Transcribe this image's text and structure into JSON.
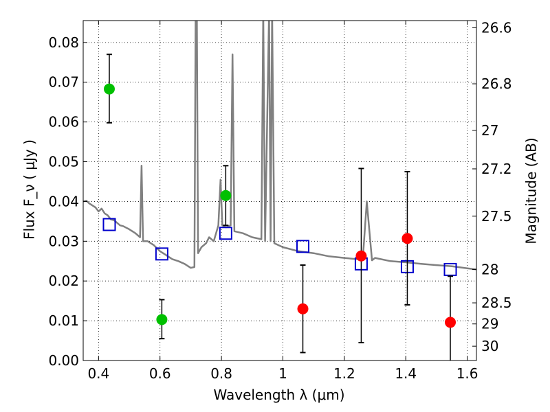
{
  "chart_data": {
    "type": "scatter",
    "xlabel": "Wavelength  λ (μm)",
    "ylabel": "Flux  F_ν  ( μJy )",
    "y2label": "Magnitude (AB)",
    "xlim": [
      0.35,
      1.63
    ],
    "ylim": [
      0.0,
      0.0855
    ],
    "grid": true,
    "x_ticks": [
      0.4,
      0.6,
      0.8,
      1.0,
      1.2,
      1.4,
      1.6
    ],
    "x_tick_labels": [
      "0.4",
      "0.6",
      "0.8",
      "1",
      "1.2",
      "1.4",
      "1.6"
    ],
    "y_ticks": [
      0.0,
      0.01,
      0.02,
      0.03,
      0.04,
      0.05,
      0.06,
      0.07,
      0.08
    ],
    "y_tick_labels": [
      "0.00",
      "0.01",
      "0.02",
      "0.03",
      "0.04",
      "0.05",
      "0.06",
      "0.07",
      "0.08"
    ],
    "mag_ticks": [
      {
        "label": "26.6",
        "flux": 0.0837
      },
      {
        "label": "26.8",
        "flux": 0.0696
      },
      {
        "label": "27",
        "flux": 0.0579
      },
      {
        "label": "27.2",
        "flux": 0.0482
      },
      {
        "label": "27.5",
        "flux": 0.0363
      },
      {
        "label": "28",
        "flux": 0.0229
      },
      {
        "label": "28.5",
        "flux": 0.0145
      },
      {
        "label": "29",
        "flux": 0.0092
      },
      {
        "label": "30",
        "flux": 0.0036
      }
    ],
    "series": [
      {
        "marker": "circle",
        "color": "#00c000",
        "points": [
          {
            "x": 0.435,
            "y": 0.0683,
            "ylo": 0.0598,
            "yhi": 0.077
          },
          {
            "x": 0.606,
            "y": 0.0103,
            "ylo": 0.0055,
            "yhi": 0.0153
          },
          {
            "x": 0.814,
            "y": 0.0415,
            "ylo": 0.034,
            "yhi": 0.049
          }
        ]
      },
      {
        "marker": "circle",
        "color": "#ff0000",
        "points": [
          {
            "x": 1.065,
            "y": 0.013,
            "ylo": 0.002,
            "yhi": 0.024
          },
          {
            "x": 1.255,
            "y": 0.0263,
            "ylo": 0.0045,
            "yhi": 0.0483
          },
          {
            "x": 1.405,
            "y": 0.0307,
            "ylo": 0.014,
            "yhi": 0.0475
          },
          {
            "x": 1.545,
            "y": 0.0096,
            "ylo": -0.002,
            "yhi": 0.0212
          }
        ]
      },
      {
        "marker": "square",
        "color": "#0000cc",
        "points": [
          {
            "x": 0.435,
            "y": 0.0342
          },
          {
            "x": 0.606,
            "y": 0.0268
          },
          {
            "x": 0.814,
            "y": 0.032
          },
          {
            "x": 1.065,
            "y": 0.0287
          },
          {
            "x": 1.255,
            "y": 0.0243
          },
          {
            "x": 1.405,
            "y": 0.0236
          },
          {
            "x": 1.545,
            "y": 0.0229
          }
        ]
      },
      {
        "marker": "line",
        "color": "#808080",
        "points": [
          [
            0.35,
            0.04
          ],
          [
            0.36,
            0.0402
          ],
          [
            0.37,
            0.0395
          ],
          [
            0.38,
            0.039
          ],
          [
            0.39,
            0.0385
          ],
          [
            0.4,
            0.0375
          ],
          [
            0.41,
            0.0382
          ],
          [
            0.42,
            0.037
          ],
          [
            0.43,
            0.0365
          ],
          [
            0.44,
            0.0355
          ],
          [
            0.45,
            0.0353
          ],
          [
            0.47,
            0.034
          ],
          [
            0.48,
            0.0338
          ],
          [
            0.5,
            0.033
          ],
          [
            0.52,
            0.032
          ],
          [
            0.535,
            0.031
          ],
          [
            0.54,
            0.049
          ],
          [
            0.545,
            0.03
          ],
          [
            0.56,
            0.03
          ],
          [
            0.58,
            0.029
          ],
          [
            0.6,
            0.0275
          ],
          [
            0.62,
            0.0265
          ],
          [
            0.64,
            0.0255
          ],
          [
            0.66,
            0.025
          ],
          [
            0.68,
            0.0243
          ],
          [
            0.7,
            0.0233
          ],
          [
            0.712,
            0.0235
          ],
          [
            0.716,
            0.088
          ],
          [
            0.72,
            0.088
          ],
          [
            0.724,
            0.027
          ],
          [
            0.735,
            0.0285
          ],
          [
            0.75,
            0.0295
          ],
          [
            0.76,
            0.031
          ],
          [
            0.775,
            0.03
          ],
          [
            0.79,
            0.034
          ],
          [
            0.797,
            0.0455
          ],
          [
            0.803,
            0.034
          ],
          [
            0.815,
            0.0335
          ],
          [
            0.83,
            0.034
          ],
          [
            0.836,
            0.077
          ],
          [
            0.842,
            0.0325
          ],
          [
            0.87,
            0.032
          ],
          [
            0.9,
            0.031
          ],
          [
            0.93,
            0.0305
          ],
          [
            0.936,
            0.088
          ],
          [
            0.942,
            0.03
          ],
          [
            0.955,
            0.088
          ],
          [
            0.96,
            0.03
          ],
          [
            0.965,
            0.088
          ],
          [
            0.972,
            0.0295
          ],
          [
            1.0,
            0.0285
          ],
          [
            1.05,
            0.0275
          ],
          [
            1.1,
            0.027
          ],
          [
            1.15,
            0.0262
          ],
          [
            1.2,
            0.0258
          ],
          [
            1.24,
            0.0255
          ],
          [
            1.26,
            0.0255
          ],
          [
            1.273,
            0.04
          ],
          [
            1.29,
            0.0252
          ],
          [
            1.3,
            0.0258
          ],
          [
            1.35,
            0.025
          ],
          [
            1.4,
            0.0247
          ],
          [
            1.45,
            0.0243
          ],
          [
            1.5,
            0.024
          ],
          [
            1.55,
            0.0237
          ],
          [
            1.6,
            0.0232
          ],
          [
            1.63,
            0.0229
          ]
        ]
      }
    ]
  }
}
